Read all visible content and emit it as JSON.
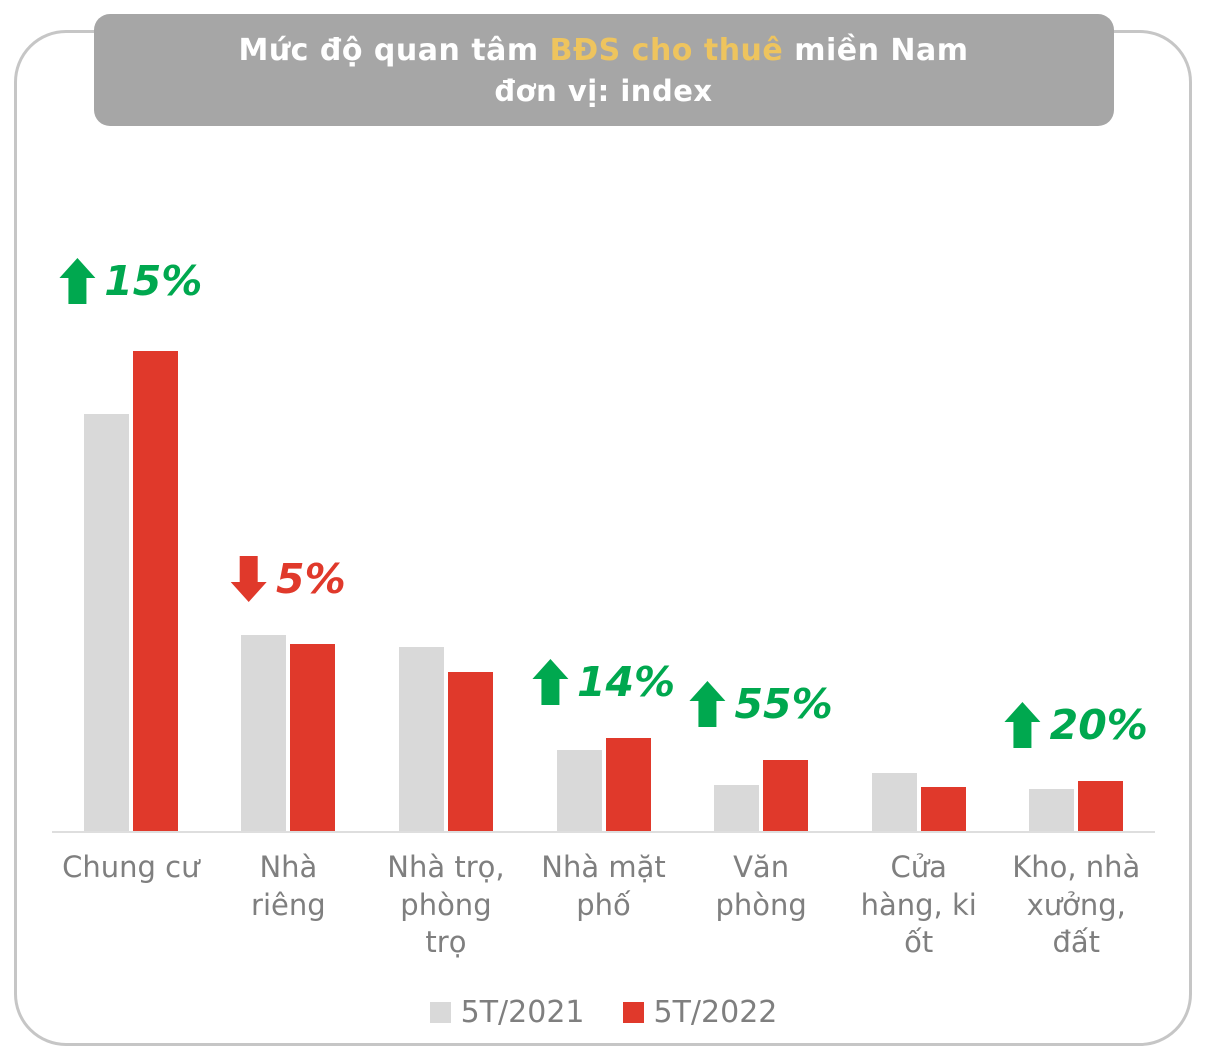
{
  "header": {
    "title_pre": "Mức độ quan tâm ",
    "title_highlight": "BĐS cho thuê",
    "title_post": " miền Nam",
    "subtitle": "đơn vị: index",
    "bg_color": "#a6a6a6",
    "highlight_color": "#eec45e",
    "text_color": "#ffffff"
  },
  "chart_data": {
    "type": "bar",
    "title": "Mức độ quan tâm BĐS cho thuê miền Nam",
    "subtitle": "đơn vị: index",
    "unit": "index",
    "grid": false,
    "legend_position": "bottom",
    "ylim": [
      0,
      120
    ],
    "categories": [
      "Chung cư",
      "Nhà riêng",
      "Nhà trọ, phòng trọ",
      "Nhà mặt phố",
      "Văn phòng",
      "Cửa hàng, ki ốt",
      "Kho, nhà xưởng, đất"
    ],
    "series": [
      {
        "name": "5T/2021",
        "color": "#d9d9d9",
        "values": [
          100,
          47,
          44,
          19.5,
          11,
          14,
          10
        ]
      },
      {
        "name": "5T/2022",
        "color": "#e0392b",
        "values": [
          115,
          44.7,
          38,
          22.2,
          17,
          10.5,
          12
        ]
      }
    ],
    "annotations": [
      {
        "category_index": 0,
        "direction": "up",
        "label": "15%",
        "color": "#00a84f"
      },
      {
        "category_index": 1,
        "direction": "down",
        "label": "5%",
        "color": "#e0392b"
      },
      {
        "category_index": 3,
        "direction": "up",
        "label": "14%",
        "color": "#00a84f"
      },
      {
        "category_index": 4,
        "direction": "up",
        "label": "55%",
        "color": "#00a84f"
      },
      {
        "category_index": 6,
        "direction": "up",
        "label": "20%",
        "color": "#00a84f"
      }
    ]
  }
}
